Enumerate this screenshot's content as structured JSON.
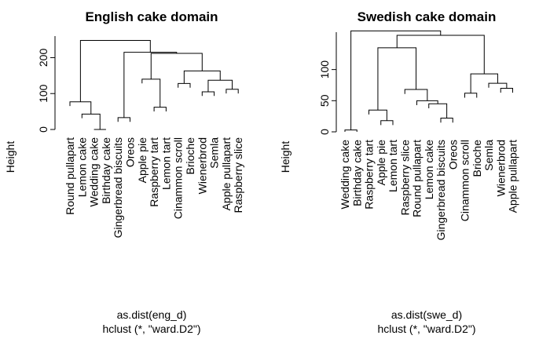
{
  "chart_data": [
    {
      "type": "dendrogram",
      "title": "English cake domain",
      "ylabel": "Height",
      "xlabel": "as.dist(eng_d)",
      "sublabel": "hclust (*, \"ward.D2\")",
      "ylim": [
        0,
        260
      ],
      "yticks": [
        0,
        100,
        200
      ],
      "leaves": [
        "Round pullapart",
        "Lemon cake",
        "Wedding cake",
        "Birthday cake",
        "Gingerbread biscuits",
        "Oreos",
        "Apple pie",
        "Raspberry tart",
        "Lemon tart",
        "Cinammon scroll",
        "Brioche",
        "Wienerbrod",
        "Semla",
        "Apple pullapart",
        "Raspberry slice"
      ],
      "merges": [
        {
          "left": 3,
          "right": 4,
          "height": 0
        },
        {
          "left": 5,
          "right": 6,
          "height": 33
        },
        {
          "left": 8,
          "right": 9,
          "height": 62
        },
        {
          "left": 10,
          "right": 11,
          "height": 128
        },
        {
          "left": 12,
          "right": 13,
          "height": 105
        },
        {
          "left": 14,
          "right": 15,
          "height": 112
        },
        {
          "left": 2,
          "right": -1,
          "height": 43
        },
        {
          "left": 1,
          "right": -7,
          "height": 77
        },
        {
          "left": 7,
          "right": -3,
          "height": 140
        },
        {
          "left": -5,
          "right": -6,
          "height": 137
        },
        {
          "left": -4,
          "right": -10,
          "height": 163
        },
        {
          "left": -9,
          "right": -11,
          "height": 212
        },
        {
          "left": -2,
          "right": -12,
          "height": 215
        },
        {
          "left": -8,
          "right": -13,
          "height": 248
        }
      ]
    },
    {
      "type": "dendrogram",
      "title": "Swedish cake domain",
      "ylabel": "Height",
      "xlabel": "as.dist(swe_d)",
      "sublabel": "hclust (*, \"ward.D2\")",
      "ylim": [
        0,
        160
      ],
      "yticks": [
        0,
        50,
        100
      ],
      "leaves": [
        "Wedding cake",
        "Birthday cake",
        "Raspberry tart",
        "Apple pie",
        "Lemon tart",
        "Raspberry slice",
        "Round pullapart",
        "Lemon cake",
        "Gingerbread biscuits",
        "Oreos",
        "Cinammon scroll",
        "Brioche",
        "Semla",
        "Wienerbrod",
        "Apple pullapart"
      ],
      "merges": [
        {
          "left": 1,
          "right": 2,
          "height": 3
        },
        {
          "left": 4,
          "right": 5,
          "height": 18
        },
        {
          "left": 3,
          "right": -2,
          "height": 35
        },
        {
          "left": 9,
          "right": 10,
          "height": 22
        },
        {
          "left": 8,
          "right": -4,
          "height": 45
        },
        {
          "left": 7,
          "right": -5,
          "height": 50
        },
        {
          "left": 6,
          "right": -6,
          "height": 68
        },
        {
          "left": -3,
          "right": -7,
          "height": 135
        },
        {
          "left": 11,
          "right": 12,
          "height": 62
        },
        {
          "left": 14,
          "right": 15,
          "height": 70
        },
        {
          "left": 13,
          "right": -10,
          "height": 78
        },
        {
          "left": -9,
          "right": -11,
          "height": 93
        },
        {
          "left": -8,
          "right": -12,
          "height": 155
        },
        {
          "left": -1,
          "right": -13,
          "height": 162
        }
      ]
    }
  ]
}
